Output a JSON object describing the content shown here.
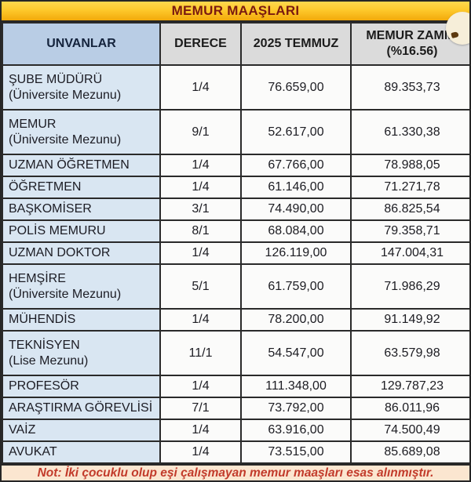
{
  "title": "MEMUR MAAŞLARI",
  "note": "Not: İki çocuklu olup eşi çalışmayan memur maaşları esas alınmıştır.",
  "table": {
    "headers": {
      "unvanlar": "UNVANLAR",
      "derece": "DERECE",
      "temmuz": "2025 TEMMUZ",
      "zam_line1": "MEMUR ZAMMI",
      "zam_line2": "(%16.56)"
    },
    "rows": [
      {
        "title": "ŞUBE MÜDÜRÜ",
        "subtitle": "(Üniversite Mezunu)",
        "derece": "1/4",
        "temmuz": "76.659,00",
        "zam": "89.353,73"
      },
      {
        "title": "MEMUR",
        "subtitle": "(Üniversite Mezunu)",
        "derece": "9/1",
        "temmuz": "52.617,00",
        "zam": "61.330,38"
      },
      {
        "title": "UZMAN ÖĞRETMEN",
        "subtitle": "",
        "derece": "1/4",
        "temmuz": "67.766,00",
        "zam": "78.988,05"
      },
      {
        "title": "ÖĞRETMEN",
        "subtitle": "",
        "derece": "1/4",
        "temmuz": "61.146,00",
        "zam": "71.271,78"
      },
      {
        "title": "BAŞKOMİSER",
        "subtitle": "",
        "derece": "3/1",
        "temmuz": "74.490,00",
        "zam": "86.825,54"
      },
      {
        "title": "POLİS MEMURU",
        "subtitle": "",
        "derece": "8/1",
        "temmuz": "68.084,00",
        "zam": "79.358,71"
      },
      {
        "title": "UZMAN DOKTOR",
        "subtitle": "",
        "derece": "1/4",
        "temmuz": "126.119,00",
        "zam": "147.004,31"
      },
      {
        "title": "HEMŞİRE",
        "subtitle": "(Üniversite Mezunu)",
        "derece": "5/1",
        "temmuz": "61.759,00",
        "zam": "71.986,29"
      },
      {
        "title": "MÜHENDİS",
        "subtitle": "",
        "derece": "1/4",
        "temmuz": "78.200,00",
        "zam": "91.149,92"
      },
      {
        "title": "TEKNİSYEN",
        "subtitle": "(Lise Mezunu)",
        "derece": "11/1",
        "temmuz": "54.547,00",
        "zam": "63.579,98"
      },
      {
        "title": "PROFESÖR",
        "subtitle": "",
        "derece": "1/4",
        "temmuz": "111.348,00",
        "zam": "129.787,23"
      },
      {
        "title": "ARAŞTIRMA GÖREVLİSİ",
        "subtitle": "",
        "derece": "7/1",
        "temmuz": "73.792,00",
        "zam": "86.011,96"
      },
      {
        "title": "VAİZ",
        "subtitle": "",
        "derece": "1/4",
        "temmuz": "63.916,00",
        "zam": "74.500,49"
      },
      {
        "title": "AVUKAT",
        "subtitle": "",
        "derece": "1/4",
        "temmuz": "73.515,00",
        "zam": "85.689,08"
      }
    ]
  },
  "colors": {
    "title_bg": "#fec92c",
    "title_text": "#7a1a10",
    "header_blue_bg": "#b9cde5",
    "header_gray_bg": "#dbdbdb",
    "name_col_bg": "#d9e6f2",
    "cell_bg": "#fbfbfa",
    "border": "#2a2a2a",
    "note_bg": "#fbe6d0",
    "note_text": "#c23b2b",
    "bottom_strip": "#7e211a"
  },
  "chart_data": {
    "type": "table",
    "title": "MEMUR MAAŞLARI",
    "columns": [
      "UNVANLAR",
      "DERECE",
      "2025 TEMMUZ",
      "MEMUR ZAMMI (%16.56)"
    ],
    "rows": [
      [
        "ŞUBE MÜDÜRÜ (Üniversite Mezunu)",
        "1/4",
        76659.0,
        89353.73
      ],
      [
        "MEMUR (Üniversite Mezunu)",
        "9/1",
        52617.0,
        61330.38
      ],
      [
        "UZMAN ÖĞRETMEN",
        "1/4",
        67766.0,
        78988.05
      ],
      [
        "ÖĞRETMEN",
        "1/4",
        61146.0,
        71271.78
      ],
      [
        "BAŞKOMİSER",
        "3/1",
        74490.0,
        86825.54
      ],
      [
        "POLİS MEMURU",
        "8/1",
        68084.0,
        79358.71
      ],
      [
        "UZMAN DOKTOR",
        "1/4",
        126119.0,
        147004.31
      ],
      [
        "HEMŞİRE (Üniversite Mezunu)",
        "5/1",
        61759.0,
        71986.29
      ],
      [
        "MÜHENDİS",
        "1/4",
        78200.0,
        91149.92
      ],
      [
        "TEKNİSYEN (Lise Mezunu)",
        "11/1",
        54547.0,
        63579.98
      ],
      [
        "PROFESÖR",
        "1/4",
        111348.0,
        129787.23
      ],
      [
        "ARAŞTIRMA GÖREVLİSİ",
        "7/1",
        73792.0,
        86011.96
      ],
      [
        "VAİZ",
        "1/4",
        63916.0,
        74500.49
      ],
      [
        "AVUKAT",
        "1/4",
        73515.0,
        85689.08
      ]
    ],
    "annotations": [
      "Not: İki çocuklu olup eşi çalışmayan memur maaşları esas alınmıştır."
    ],
    "increase_rate_percent": 16.56
  }
}
